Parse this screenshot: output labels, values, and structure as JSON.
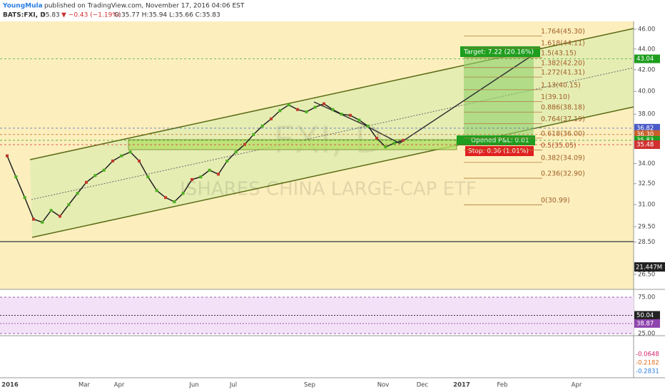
{
  "header": {
    "author": "YoungMula",
    "published": "published on TradingView.com, November 17, 2016 04:06 EST",
    "symbol": "BATS:FXI, D",
    "last": "35.83",
    "change": "▼ −0.43 (−1.19%)",
    "ohlc": "O:35.77 H:35.94 L:35.66 C:35.83"
  },
  "chart_data": {
    "type": "line",
    "title": "FXI, D",
    "subtitle": "ISHARES CHINA LARGE-CAP ETF",
    "log_scale": true,
    "color": "#222222",
    "values": [
      34.6,
      33.0,
      31.5,
      30.0,
      29.8,
      30.6,
      30.2,
      31.0,
      31.8,
      32.6,
      33.1,
      33.5,
      34.2,
      34.6,
      34.9,
      34.2,
      33.0,
      32.0,
      31.5,
      31.2,
      31.8,
      32.8,
      33.0,
      33.5,
      33.2,
      34.2,
      34.9,
      35.5,
      36.3,
      37.0,
      37.6,
      38.3,
      38.8,
      38.4,
      38.2,
      38.6,
      38.9,
      38.4,
      38.0,
      37.9,
      37.5,
      37.0,
      36.0,
      35.3,
      35.6,
      35.83
    ],
    "ylim": [
      25.66,
      46.6
    ],
    "yticks": [
      {
        "value": 46,
        "label": "46.00"
      },
      {
        "value": 44,
        "label": "44.00"
      },
      {
        "value": 42,
        "label": "42.00"
      },
      {
        "value": 40,
        "label": "40.00"
      },
      {
        "value": 38,
        "label": "38.00"
      },
      {
        "value": 34,
        "label": "34.00"
      },
      {
        "value": 32.5,
        "label": "32.50"
      },
      {
        "value": 31,
        "label": "31.00"
      },
      {
        "value": 29.5,
        "label": "29.50"
      },
      {
        "value": 28.5,
        "label": "28.50"
      },
      {
        "value": 26.5,
        "label": "26.50"
      }
    ],
    "x_labels": [
      "2016",
      "Mar",
      "Apr",
      "Jun",
      "Jul",
      "Sep",
      "Nov",
      "Dec",
      "2017",
      "Feb",
      "Apr"
    ],
    "fib": [
      {
        "label": "1.764(45.30)",
        "price": 45.3
      },
      {
        "label": "1.618(44.11)",
        "price": 44.11
      },
      {
        "label": "1.5(43.15)",
        "price": 43.15
      },
      {
        "label": "1.382(42.20)",
        "price": 42.2
      },
      {
        "label": "1.272(41.31)",
        "price": 41.31
      },
      {
        "label": "1.13(40.15)",
        "price": 40.15
      },
      {
        "label": "1(39.10)",
        "price": 39.1
      },
      {
        "label": "0.886(38.18)",
        "price": 38.18
      },
      {
        "label": "0.764(37.19)",
        "price": 37.19
      },
      {
        "label": "0.618(36.00)",
        "price": 36.0
      },
      {
        "label": "0.5(35.05)",
        "price": 35.05
      },
      {
        "label": "0.382(34.09)",
        "price": 34.09
      },
      {
        "label": "0.236(32.90)",
        "price": 32.9
      },
      {
        "label": "0(30.99)",
        "price": 30.99
      }
    ],
    "price_labels": [
      {
        "label": "43.04",
        "price": 43.04,
        "color": "#1e9e1e"
      },
      {
        "label": "36.82",
        "price": 36.82,
        "color": "#4a5ac8"
      },
      {
        "label": "36.30",
        "price": 36.3,
        "color": "#c8602a"
      },
      {
        "label": "35.83",
        "price": 35.83,
        "color": "#1e9e1e"
      },
      {
        "label": "35.48",
        "price": 35.48,
        "color": "#d03030"
      }
    ],
    "target": "Target: 7.22 (20.16%)",
    "opened": "Opened P&L: 0.01",
    "stop": "Stop: 0.36 (1.01%)",
    "volume_label": "21.447M",
    "rsi": {
      "yticks": [
        {
          "value": 75,
          "label": "75.00"
        },
        {
          "value": 25,
          "label": "25.00"
        }
      ],
      "labels": [
        {
          "value": 50.04,
          "label": "50.04"
        },
        {
          "value": 38.87,
          "label": "38.87"
        }
      ]
    },
    "macd": {
      "labels": [
        "-0.0648",
        "-0.2182",
        "-0.2831"
      ]
    }
  }
}
